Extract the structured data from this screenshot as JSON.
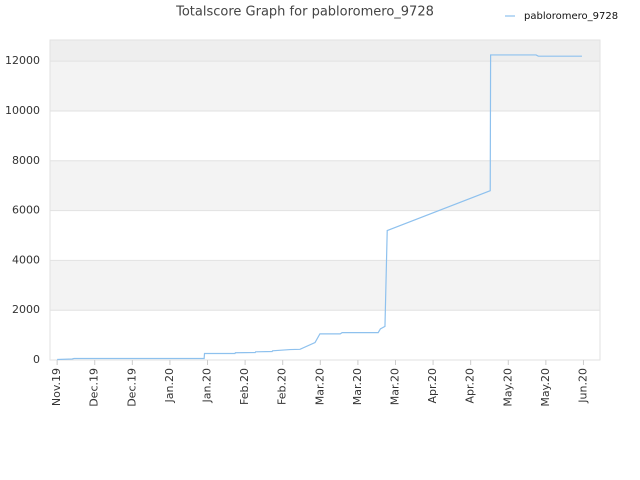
{
  "chart_data": {
    "type": "line",
    "title": "Totalscore Graph for pabloromero_9728",
    "x": [
      0,
      0.4,
      0.45,
      3.91,
      3.92,
      4.73,
      4.74,
      5.27,
      5.28,
      5.72,
      5.73,
      6.2,
      6.46,
      6.86,
      6.99,
      7.53,
      7.58,
      8.54,
      8.6,
      8.72,
      8.78,
      11.52,
      11.53,
      12.74,
      12.8,
      13.96
    ],
    "series": [
      {
        "name": "pabloromero_9728",
        "color": "#8ec1ee",
        "values": [
          20,
          40,
          60,
          60,
          260,
          260,
          290,
          300,
          330,
          340,
          370,
          420,
          430,
          700,
          1050,
          1050,
          1100,
          1100,
          1250,
          1350,
          5200,
          6800,
          12250,
          12250,
          12200,
          12200
        ]
      }
    ],
    "xlim": [
      -0.19,
      14.44
    ],
    "xticks": [
      {
        "value": 0,
        "label": "Nov.19"
      },
      {
        "value": 1,
        "label": "Dec.19"
      },
      {
        "value": 2,
        "label": "Dec.19"
      },
      {
        "value": 3,
        "label": "Jan.20"
      },
      {
        "value": 4,
        "label": "Jan.20"
      },
      {
        "value": 5,
        "label": "Feb.20"
      },
      {
        "value": 6,
        "label": "Feb.20"
      },
      {
        "value": 7,
        "label": "Mar.20"
      },
      {
        "value": 8,
        "label": "Mar.20"
      },
      {
        "value": 9,
        "label": "Mar.20"
      },
      {
        "value": 10,
        "label": "Apr.20"
      },
      {
        "value": 11,
        "label": "Apr.20"
      },
      {
        "value": 12,
        "label": "May.20"
      },
      {
        "value": 13,
        "label": "May.20"
      },
      {
        "value": 14,
        "label": "Jun.20"
      }
    ],
    "ylim": [
      0,
      12850
    ],
    "yticks": [
      0,
      2000,
      4000,
      6000,
      8000,
      10000,
      12000
    ],
    "grid": true,
    "legend": "top-right"
  }
}
